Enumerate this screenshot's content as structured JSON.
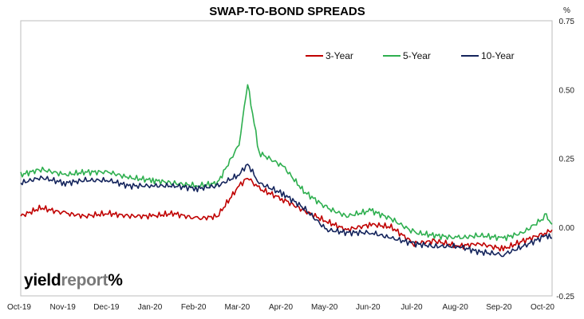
{
  "chart_data": {
    "type": "line",
    "title": "SWAP-TO-BOND SPREADS",
    "y_unit": "%",
    "ylim": [
      -0.25,
      0.75
    ],
    "yticks": [
      "0.75",
      "0.50",
      "0.25",
      "0.00",
      "-0.25"
    ],
    "ytick_values": [
      0.75,
      0.5,
      0.25,
      0.0,
      -0.25
    ],
    "xticks": [
      "Oct-19",
      "Nov-19",
      "Dec-19",
      "Jan-20",
      "Feb-20",
      "Mar-20",
      "Apr-20",
      "May-20",
      "Jun-20",
      "Jul-20",
      "Aug-20",
      "Sep-20",
      "Oct-20"
    ],
    "legend_position": "top-right",
    "grid": false,
    "x": [
      "2019-10-01",
      "2019-10-15",
      "2019-11-01",
      "2019-11-15",
      "2019-12-01",
      "2019-12-15",
      "2020-01-01",
      "2020-01-15",
      "2020-02-01",
      "2020-02-15",
      "2020-03-01",
      "2020-03-07",
      "2020-03-15",
      "2020-04-01",
      "2020-04-15",
      "2020-05-01",
      "2020-05-15",
      "2020-06-01",
      "2020-06-15",
      "2020-07-01",
      "2020-07-15",
      "2020-08-01",
      "2020-08-15",
      "2020-09-01",
      "2020-09-15",
      "2020-10-01",
      "2020-10-05"
    ],
    "series": [
      {
        "name": "3-Year",
        "color": "#c00000",
        "values": [
          0.04,
          0.07,
          0.05,
          0.04,
          0.05,
          0.04,
          0.04,
          0.05,
          0.03,
          0.04,
          0.15,
          0.18,
          0.14,
          0.1,
          0.06,
          0.02,
          -0.01,
          0.01,
          0.0,
          -0.06,
          -0.05,
          -0.07,
          -0.06,
          -0.08,
          -0.05,
          -0.02,
          -0.01
        ]
      },
      {
        "name": "5-Year",
        "color": "#2eaf4f",
        "values": [
          0.19,
          0.21,
          0.19,
          0.2,
          0.2,
          0.18,
          0.17,
          0.16,
          0.15,
          0.16,
          0.3,
          0.52,
          0.27,
          0.22,
          0.13,
          0.07,
          0.04,
          0.06,
          0.03,
          -0.02,
          -0.03,
          -0.04,
          -0.03,
          -0.04,
          -0.02,
          0.04,
          0.01
        ]
      },
      {
        "name": "10-Year",
        "color": "#14245c",
        "values": [
          0.16,
          0.18,
          0.16,
          0.17,
          0.17,
          0.15,
          0.15,
          0.15,
          0.14,
          0.15,
          0.19,
          0.23,
          0.16,
          0.12,
          0.07,
          -0.01,
          -0.02,
          -0.02,
          -0.04,
          -0.06,
          -0.07,
          -0.07,
          -0.09,
          -0.1,
          -0.07,
          -0.03,
          -0.04
        ]
      }
    ]
  },
  "logo": {
    "part1": "yield",
    "part2": "report",
    "part3": "%"
  }
}
